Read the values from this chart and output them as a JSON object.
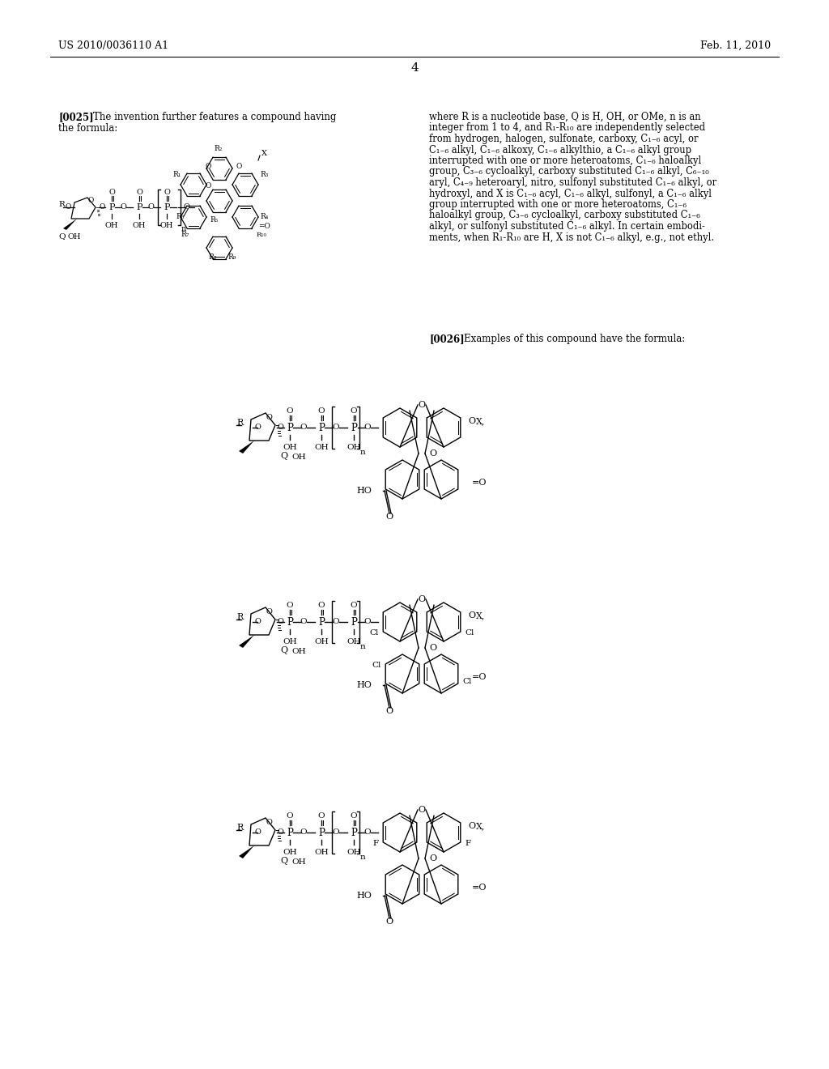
{
  "bg": "#ffffff",
  "header_left": "US 2010/0036110 A1",
  "header_right": "Feb. 11, 2010",
  "page_num": "4",
  "para0025_bold": "[0025]",
  "para0025_text": "The invention further features a compound having",
  "para0025_text2": "the formula:",
  "para0026_bold": "[0026]",
  "para0026_text": "Examples of this compound have the formula:",
  "right_col": [
    "where R is a nucleotide base, Q is H, OH, or OMe, n is an",
    "integer from 1 to 4, and R₁-R₁₀ are independently selected",
    "from hydrogen, halogen, sulfonate, carboxy, C₁₋₆ acyl, or",
    "C₁₋₆ alkyl, C₁₋₆ alkoxy, C₁₋₆ alkylthio, a C₁₋₆ alkyl group",
    "interrupted with one or more heteroatoms, C₁₋₆ haloalkyl",
    "group, C₃₋₆ cycloalkyl, carboxy substituted C₁₋₆ alkyl, C₆₋₁₀",
    "aryl, C₄₋₉ heteroaryl, nitro, sulfonyl substituted C₁₋₆ alkyl, or",
    "hydroxyl, and X is C₁₋₆ acyl, C₁₋₆ alkyl, sulfonyl, a C₁₋₆ alkyl",
    "group interrupted with one or more heteroatoms, C₁₋₆",
    "haloalkyl group, C₃₋₆ cycloalkyl, carboxy substituted C₁₋₆",
    "alkyl, or sulfonyl substituted C₁₋₆ alkyl. In certain embodi-",
    "ments, when R₁-R₁₀ are H, X is not C₁₋₆ alkyl, e.g., not ethyl."
  ]
}
